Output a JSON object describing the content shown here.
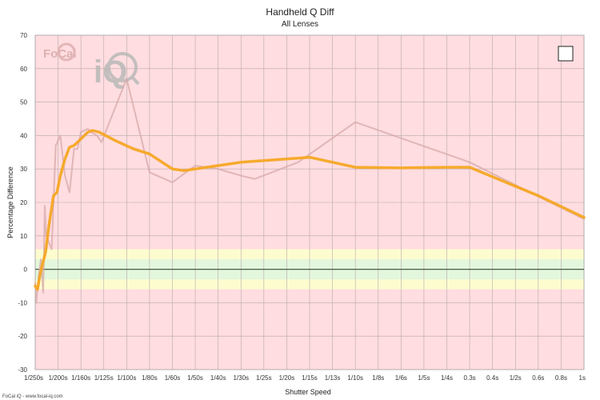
{
  "chart_data": {
    "type": "line",
    "title": "Handheld Q Diff",
    "subtitle": "All Lenses",
    "xlabel": "Shutter Speed",
    "ylabel": "Percentage Difference",
    "ylim": [
      -30,
      70
    ],
    "yticks": [
      -30,
      -20,
      -10,
      0,
      10,
      20,
      30,
      40,
      50,
      60,
      70
    ],
    "categories": [
      "1/250s",
      "1/200s",
      "1/160s",
      "1/125s",
      "1/100s",
      "1/80s",
      "1/60s",
      "1/50s",
      "1/40s",
      "1/30s",
      "1/25s",
      "1/20s",
      "1/15s",
      "1/13s",
      "1/10s",
      "1/8s",
      "1/6s",
      "1/5s",
      "1/4s",
      "0.3s",
      "0.4s",
      "1/2s",
      "0.6s",
      "0.8s",
      "1s"
    ],
    "grid": true,
    "bands": [
      {
        "from": -6,
        "to": -3,
        "color": "#fdfccf"
      },
      {
        "from": -3,
        "to": 3,
        "color": "#e3f7dc"
      },
      {
        "from": 3,
        "to": 6,
        "color": "#fdfccf"
      }
    ],
    "background_color": "#ffdde0",
    "series": [
      {
        "style": "raw",
        "color": "#d5a8aa",
        "points": [
          [
            0.0,
            -4
          ],
          [
            0.05,
            -10
          ],
          [
            0.15,
            -2
          ],
          [
            0.25,
            3
          ],
          [
            0.35,
            -7
          ],
          [
            0.42,
            19
          ],
          [
            0.48,
            10
          ],
          [
            0.6,
            8
          ],
          [
            0.72,
            6
          ],
          [
            0.8,
            20
          ],
          [
            0.9,
            37
          ],
          [
            1.1,
            40
          ],
          [
            1.3,
            28
          ],
          [
            1.5,
            23
          ],
          [
            1.7,
            36
          ],
          [
            1.85,
            36
          ],
          [
            2.0,
            41
          ],
          [
            2.3,
            42
          ],
          [
            2.45,
            41
          ],
          [
            2.7,
            40
          ],
          [
            2.9,
            38
          ],
          [
            4.0,
            57
          ],
          [
            5.0,
            29
          ],
          [
            6.0,
            26
          ],
          [
            7.0,
            31
          ],
          [
            8.0,
            30
          ],
          [
            9.0,
            28
          ],
          [
            9.6,
            27
          ],
          [
            11.5,
            32
          ],
          [
            14.0,
            44
          ],
          [
            19.0,
            32
          ],
          [
            24.0,
            15
          ]
        ]
      },
      {
        "style": "smoothed",
        "color": "#f5a623",
        "points": [
          [
            0.0,
            -5
          ],
          [
            0.1,
            -6
          ],
          [
            0.2,
            -2
          ],
          [
            0.3,
            1
          ],
          [
            0.45,
            5
          ],
          [
            0.6,
            13
          ],
          [
            0.8,
            22
          ],
          [
            0.95,
            23
          ],
          [
            1.1,
            28
          ],
          [
            1.3,
            33
          ],
          [
            1.5,
            36.5
          ],
          [
            1.7,
            37
          ],
          [
            2.0,
            39
          ],
          [
            2.3,
            41
          ],
          [
            2.5,
            41.5
          ],
          [
            2.8,
            41
          ],
          [
            3.5,
            38.5
          ],
          [
            4.3,
            36
          ],
          [
            5.0,
            34.5
          ],
          [
            6.0,
            30
          ],
          [
            6.5,
            29.5
          ],
          [
            7.0,
            30
          ],
          [
            8.0,
            31
          ],
          [
            9.0,
            32
          ],
          [
            10.0,
            32.5
          ],
          [
            12.0,
            33.5
          ],
          [
            14.0,
            30.5
          ],
          [
            16.0,
            30.3
          ],
          [
            18.0,
            30.5
          ],
          [
            19.0,
            30.5
          ],
          [
            22.0,
            22
          ],
          [
            24.0,
            15.5
          ]
        ]
      }
    ]
  },
  "logo": {
    "text": "FoCal",
    "iq": "iQ"
  },
  "legend_box": {
    "label": ""
  },
  "footer": {
    "text": "FoCal iQ - www.focal-iq.com"
  }
}
